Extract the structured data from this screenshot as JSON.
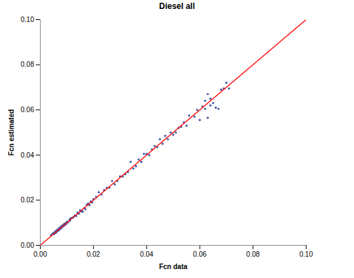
{
  "chart_data": {
    "type": "scatter",
    "title": "Diesel all",
    "x_label": "Fcn data",
    "y_label": "Fcn estimated",
    "xlim": [
      0,
      0.1
    ],
    "ylim": [
      0,
      0.1
    ],
    "xticks": [
      {
        "value": 0,
        "label": "0.00"
      },
      {
        "value": 0.02,
        "label": "0.02"
      },
      {
        "value": 0.04,
        "label": "0.04"
      },
      {
        "value": 0.06,
        "label": "0.06"
      },
      {
        "value": 0.08,
        "label": "0.08"
      },
      {
        "value": 0.1,
        "label": "0.10"
      }
    ],
    "yticks": [
      {
        "value": 0,
        "label": "0.00"
      },
      {
        "value": 0.02,
        "label": "0.02"
      },
      {
        "value": 0.04,
        "label": "0.04"
      },
      {
        "value": 0.06,
        "label": "0.06"
      },
      {
        "value": 0.08,
        "label": "0.08"
      },
      {
        "value": 0.1,
        "label": "0.10"
      }
    ],
    "grid": false,
    "series": [
      {
        "type": "scatter",
        "color": "#4a5aa8",
        "marker": "circle",
        "x": [
          0.004,
          0.0045,
          0.005,
          0.0052,
          0.0055,
          0.0058,
          0.006,
          0.0062,
          0.0065,
          0.0068,
          0.007,
          0.0072,
          0.0075,
          0.0078,
          0.008,
          0.0082,
          0.0085,
          0.0088,
          0.009,
          0.0092,
          0.0095,
          0.0098,
          0.01,
          0.0105,
          0.011,
          0.0112,
          0.0115,
          0.012,
          0.0125,
          0.013,
          0.0135,
          0.014,
          0.0145,
          0.015,
          0.0155,
          0.016,
          0.0165,
          0.017,
          0.0175,
          0.018,
          0.0185,
          0.019,
          0.0195,
          0.02,
          0.021,
          0.022,
          0.023,
          0.024,
          0.025,
          0.026,
          0.027,
          0.028,
          0.029,
          0.03,
          0.031,
          0.032,
          0.033,
          0.034,
          0.035,
          0.036,
          0.037,
          0.038,
          0.039,
          0.04,
          0.041,
          0.042,
          0.043,
          0.044,
          0.045,
          0.046,
          0.047,
          0.048,
          0.049,
          0.05,
          0.051,
          0.052,
          0.053,
          0.054,
          0.055,
          0.056,
          0.058,
          0.059,
          0.06,
          0.061,
          0.062,
          0.062,
          0.063,
          0.063,
          0.064,
          0.064,
          0.065,
          0.066,
          0.067,
          0.068,
          0.069,
          0.07,
          0.071
        ],
        "values": [
          0.0045,
          0.005,
          0.0055,
          0.005,
          0.006,
          0.0055,
          0.0065,
          0.006,
          0.007,
          0.0065,
          0.0075,
          0.007,
          0.008,
          0.0075,
          0.0085,
          0.008,
          0.009,
          0.0085,
          0.0095,
          0.009,
          0.0098,
          0.0095,
          0.0105,
          0.0102,
          0.0115,
          0.011,
          0.012,
          0.0122,
          0.0125,
          0.0132,
          0.013,
          0.0145,
          0.014,
          0.0155,
          0.015,
          0.015,
          0.0165,
          0.016,
          0.018,
          0.0185,
          0.0178,
          0.0195,
          0.019,
          0.0205,
          0.0215,
          0.0235,
          0.0225,
          0.0245,
          0.0255,
          0.0255,
          0.0285,
          0.027,
          0.0285,
          0.0305,
          0.0305,
          0.0315,
          0.0325,
          0.037,
          0.034,
          0.035,
          0.038,
          0.037,
          0.0405,
          0.0405,
          0.04,
          0.0425,
          0.044,
          0.0435,
          0.047,
          0.045,
          0.0485,
          0.047,
          0.05,
          0.049,
          0.05,
          0.052,
          0.0525,
          0.0545,
          0.053,
          0.0575,
          0.057,
          0.06,
          0.0555,
          0.0615,
          0.0605,
          0.064,
          0.0565,
          0.067,
          0.062,
          0.065,
          0.063,
          0.061,
          0.0605,
          0.069,
          0.0695,
          0.072,
          0.0695
        ]
      },
      {
        "type": "line",
        "color": "#ff0000",
        "line_style": "solid",
        "x": [
          0,
          0.1
        ],
        "values": [
          0,
          0.1
        ]
      }
    ]
  }
}
